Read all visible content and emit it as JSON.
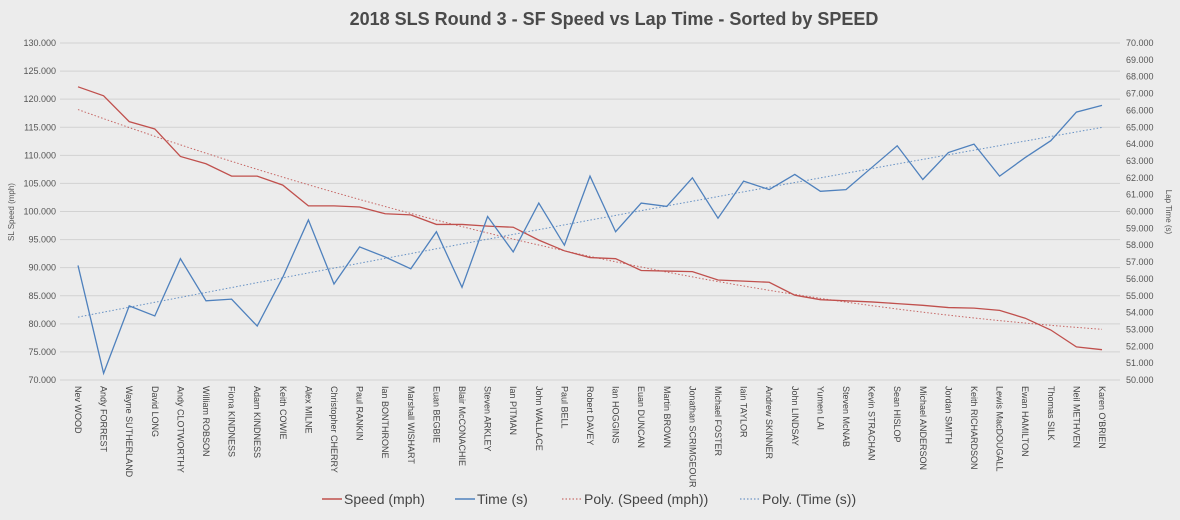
{
  "chart_data": {
    "type": "line",
    "title": "2018 SLS Round 3 - SF Speed vs Lap Time - Sorted by SPEED",
    "ylabel": "SL Speed (mph)",
    "y2label": "Lap Time (s)",
    "ylim": [
      70,
      130
    ],
    "y2lim": [
      50,
      70
    ],
    "yticks": [
      "70.000",
      "75.000",
      "80.000",
      "85.000",
      "90.000",
      "95.000",
      "100.000",
      "105.000",
      "110.000",
      "115.000",
      "120.000",
      "125.000",
      "130.000"
    ],
    "y2ticks": [
      "50.000",
      "51.000",
      "52.000",
      "53.000",
      "54.000",
      "55.000",
      "56.000",
      "57.000",
      "58.000",
      "59.000",
      "60.000",
      "61.000",
      "62.000",
      "63.000",
      "64.000",
      "65.000",
      "66.000",
      "67.000",
      "68.000",
      "69.000",
      "70.000"
    ],
    "grid": true,
    "legend": "bottom",
    "categories": [
      "Nev WOOD",
      "Andy FORREST",
      "Wayne SUTHERLAND",
      "David LONG",
      "Andy CLOTWORTHY",
      "William ROBSON",
      "Fiona KINDNESS",
      "Adam KINDNESS",
      "Keith COWIE",
      "Alex MILNE",
      "Christopher CHERRY",
      "Paul RANKIN",
      "Ian BONTHRONE",
      "Marshall WISHART",
      "Euan BEGBIE",
      "Blair McCONACHIE",
      "Steven ARKLEY",
      "Ian PITMAN",
      "John WALLACE",
      "Paul BELL",
      "Robert DAVEY",
      "Ian HOGGINS",
      "Euan DUNCAN",
      "Martin BROWN",
      "Jonathan SCRIMGEOUR",
      "Michael FOSTER",
      "Iain TAYLOR",
      "Andrew SKINNER",
      "John LINDSAY",
      "Yumen LAI",
      "Steven McNAB",
      "Kevin STRACHAN",
      "Sean HISLOP",
      "Michael ANDERSON",
      "Jordan SMITH",
      "Keith RICHARDSON",
      "Lewis MacDOUGALL",
      "Ewan HAMILTON",
      "Thomas SILK",
      "Neil METHVEN",
      "Karen O'BRIEN"
    ],
    "series": [
      {
        "name": "Speed (mph)",
        "axis": "left",
        "color": "#c0504d",
        "style": "solid",
        "values": [
          122.2,
          120.6,
          116.0,
          114.7,
          109.8,
          108.5,
          106.3,
          106.3,
          104.7,
          101.0,
          101.0,
          100.8,
          99.6,
          99.4,
          97.7,
          97.7,
          97.4,
          97.2,
          94.9,
          93.0,
          91.8,
          91.6,
          89.5,
          89.4,
          89.3,
          87.8,
          87.6,
          87.4,
          85.1,
          84.3,
          84.1,
          83.9,
          83.6,
          83.3,
          82.9,
          82.8,
          82.4,
          81.0,
          78.9,
          75.9,
          75.4
        ]
      },
      {
        "name": "Time (s)",
        "axis": "right",
        "color": "#4f81bd",
        "style": "solid",
        "values": [
          56.8,
          50.4,
          54.4,
          53.8,
          57.2,
          54.7,
          54.8,
          53.2,
          56.1,
          59.5,
          55.7,
          57.9,
          57.3,
          56.6,
          58.8,
          55.5,
          59.7,
          57.6,
          60.5,
          58.0,
          62.1,
          58.8,
          60.5,
          60.3,
          62.0,
          59.6,
          61.8,
          61.3,
          62.2,
          61.2,
          61.3,
          62.6,
          63.9,
          61.9,
          63.5,
          64.0,
          62.1,
          63.2,
          64.2,
          65.9,
          66.3
        ]
      },
      {
        "name": "Poly. (Speed (mph))",
        "axis": "left",
        "color": "#c0504d",
        "style": "dotted",
        "trend_of": 0
      },
      {
        "name": "Poly. (Time (s))",
        "axis": "right",
        "color": "#4f81bd",
        "style": "dotted",
        "trend_of": 1
      }
    ]
  }
}
